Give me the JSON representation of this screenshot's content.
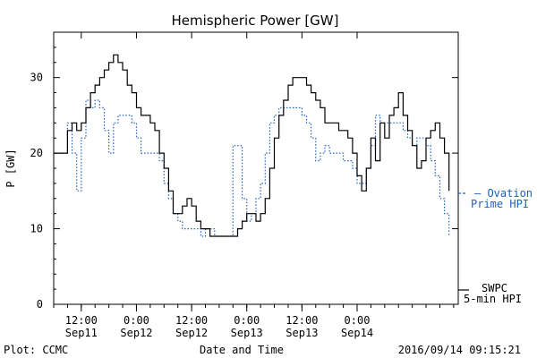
{
  "chart_data": {
    "type": "line",
    "title": "Hemispheric Power [GW]",
    "ylabel": "P [GW]",
    "xlabel": "Date and Time",
    "ylim": [
      0,
      36
    ],
    "xlim": [
      "2016-09-11T06:00",
      "2016-09-14T22:00"
    ],
    "grid": false,
    "y_ticks": [
      0,
      10,
      20,
      30
    ],
    "y_tick_labels": [
      "0",
      "10",
      "20",
      "30"
    ],
    "x_ticks": [
      {
        "t": "2016-09-11T12:00",
        "time": "12:00",
        "date": "Sep11"
      },
      {
        "t": "2016-09-12T00:00",
        "time": "0:00",
        "date": "Sep12"
      },
      {
        "t": "2016-09-12T12:00",
        "time": "12:00",
        "date": "Sep12"
      },
      {
        "t": "2016-09-13T00:00",
        "time": "0:00",
        "date": "Sep13"
      },
      {
        "t": "2016-09-13T12:00",
        "time": "12:00",
        "date": "Sep13"
      },
      {
        "t": "2016-09-14T00:00",
        "time": "0:00",
        "date": "Sep14"
      }
    ],
    "series": [
      {
        "name": "SWPC 5-min HPI",
        "style": "solid",
        "color": "#000000",
        "legend": [
          "SWPC",
          "5-min HPI"
        ],
        "points": [
          [
            "2016-09-11T06:00",
            20
          ],
          [
            "2016-09-11T08:00",
            20
          ],
          [
            "2016-09-11T09:00",
            23
          ],
          [
            "2016-09-11T10:00",
            24
          ],
          [
            "2016-09-11T11:00",
            23
          ],
          [
            "2016-09-11T12:00",
            24
          ],
          [
            "2016-09-11T13:00",
            26
          ],
          [
            "2016-09-11T14:00",
            28
          ],
          [
            "2016-09-11T15:00",
            29
          ],
          [
            "2016-09-11T16:00",
            30
          ],
          [
            "2016-09-11T17:00",
            31
          ],
          [
            "2016-09-11T18:00",
            32
          ],
          [
            "2016-09-11T19:00",
            33
          ],
          [
            "2016-09-11T20:00",
            32
          ],
          [
            "2016-09-11T21:00",
            31
          ],
          [
            "2016-09-11T22:00",
            29
          ],
          [
            "2016-09-11T23:00",
            28
          ],
          [
            "2016-09-12T00:00",
            26
          ],
          [
            "2016-09-12T01:00",
            25
          ],
          [
            "2016-09-12T02:00",
            25
          ],
          [
            "2016-09-12T03:00",
            24
          ],
          [
            "2016-09-12T04:00",
            23
          ],
          [
            "2016-09-12T05:00",
            20
          ],
          [
            "2016-09-12T06:00",
            18
          ],
          [
            "2016-09-12T07:00",
            15
          ],
          [
            "2016-09-12T08:00",
            12
          ],
          [
            "2016-09-12T09:00",
            12
          ],
          [
            "2016-09-12T10:00",
            13
          ],
          [
            "2016-09-12T11:00",
            14
          ],
          [
            "2016-09-12T12:00",
            13
          ],
          [
            "2016-09-12T13:00",
            11
          ],
          [
            "2016-09-12T14:00",
            10
          ],
          [
            "2016-09-12T15:00",
            10
          ],
          [
            "2016-09-12T16:00",
            9
          ],
          [
            "2016-09-12T17:00",
            9
          ],
          [
            "2016-09-12T18:00",
            9
          ],
          [
            "2016-09-12T19:00",
            9
          ],
          [
            "2016-09-12T20:00",
            9
          ],
          [
            "2016-09-12T21:00",
            9
          ],
          [
            "2016-09-12T22:00",
            10
          ],
          [
            "2016-09-12T23:00",
            11
          ],
          [
            "2016-09-13T00:00",
            12
          ],
          [
            "2016-09-13T01:00",
            12
          ],
          [
            "2016-09-13T02:00",
            11
          ],
          [
            "2016-09-13T03:00",
            12
          ],
          [
            "2016-09-13T04:00",
            14
          ],
          [
            "2016-09-13T05:00",
            18
          ],
          [
            "2016-09-13T06:00",
            22
          ],
          [
            "2016-09-13T07:00",
            25
          ],
          [
            "2016-09-13T08:00",
            27
          ],
          [
            "2016-09-13T09:00",
            29
          ],
          [
            "2016-09-13T10:00",
            30
          ],
          [
            "2016-09-13T11:00",
            30
          ],
          [
            "2016-09-13T12:00",
            30
          ],
          [
            "2016-09-13T13:00",
            29
          ],
          [
            "2016-09-13T14:00",
            28
          ],
          [
            "2016-09-13T15:00",
            27
          ],
          [
            "2016-09-13T16:00",
            26
          ],
          [
            "2016-09-13T17:00",
            24
          ],
          [
            "2016-09-13T18:00",
            24
          ],
          [
            "2016-09-13T19:00",
            24
          ],
          [
            "2016-09-13T20:00",
            23
          ],
          [
            "2016-09-13T21:00",
            23
          ],
          [
            "2016-09-13T22:00",
            22
          ],
          [
            "2016-09-13T23:00",
            20
          ],
          [
            "2016-09-14T00:00",
            17
          ],
          [
            "2016-09-14T01:00",
            15
          ],
          [
            "2016-09-14T02:00",
            18
          ],
          [
            "2016-09-14T03:00",
            22
          ],
          [
            "2016-09-14T04:00",
            19
          ],
          [
            "2016-09-14T05:00",
            24
          ],
          [
            "2016-09-14T06:00",
            22
          ],
          [
            "2016-09-14T07:00",
            25
          ],
          [
            "2016-09-14T08:00",
            26
          ],
          [
            "2016-09-14T09:00",
            28
          ],
          [
            "2016-09-14T10:00",
            25
          ],
          [
            "2016-09-14T11:00",
            23
          ],
          [
            "2016-09-14T12:00",
            21
          ],
          [
            "2016-09-14T13:00",
            18
          ],
          [
            "2016-09-14T14:00",
            19
          ],
          [
            "2016-09-14T15:00",
            22
          ],
          [
            "2016-09-14T16:00",
            23
          ],
          [
            "2016-09-14T17:00",
            24
          ],
          [
            "2016-09-14T18:00",
            22
          ],
          [
            "2016-09-14T19:00",
            20
          ],
          [
            "2016-09-14T20:00",
            15
          ]
        ]
      },
      {
        "name": "Ovation Prime HPI",
        "style": "dotted",
        "color": "#1f5fbf",
        "legend": [
          "— Ovation",
          "Prime HPI"
        ],
        "points": [
          [
            "2016-09-11T06:00",
            20
          ],
          [
            "2016-09-11T08:00",
            20
          ],
          [
            "2016-09-11T09:00",
            24
          ],
          [
            "2016-09-11T10:00",
            20
          ],
          [
            "2016-09-11T11:00",
            15
          ],
          [
            "2016-09-11T12:00",
            22
          ],
          [
            "2016-09-11T13:00",
            27
          ],
          [
            "2016-09-11T14:00",
            26
          ],
          [
            "2016-09-11T15:00",
            27
          ],
          [
            "2016-09-11T16:00",
            26
          ],
          [
            "2016-09-11T17:00",
            23
          ],
          [
            "2016-09-11T18:00",
            20
          ],
          [
            "2016-09-11T19:00",
            24
          ],
          [
            "2016-09-11T20:00",
            25
          ],
          [
            "2016-09-11T21:00",
            25
          ],
          [
            "2016-09-11T22:00",
            25
          ],
          [
            "2016-09-11T23:00",
            24
          ],
          [
            "2016-09-12T00:00",
            22
          ],
          [
            "2016-09-12T01:00",
            20
          ],
          [
            "2016-09-12T02:00",
            20
          ],
          [
            "2016-09-12T03:00",
            20
          ],
          [
            "2016-09-12T04:00",
            20
          ],
          [
            "2016-09-12T05:00",
            19
          ],
          [
            "2016-09-12T06:00",
            16
          ],
          [
            "2016-09-12T07:00",
            14
          ],
          [
            "2016-09-12T08:00",
            12
          ],
          [
            "2016-09-12T09:00",
            11
          ],
          [
            "2016-09-12T10:00",
            10
          ],
          [
            "2016-09-12T11:00",
            10
          ],
          [
            "2016-09-12T12:00",
            10
          ],
          [
            "2016-09-12T13:00",
            10
          ],
          [
            "2016-09-12T14:00",
            9
          ],
          [
            "2016-09-12T15:00",
            10
          ],
          [
            "2016-09-12T16:00",
            10
          ],
          [
            "2016-09-12T17:00",
            9
          ],
          [
            "2016-09-12T18:00",
            9
          ],
          [
            "2016-09-12T19:00",
            9
          ],
          [
            "2016-09-12T20:00",
            9
          ],
          [
            "2016-09-12T21:00",
            21
          ],
          [
            "2016-09-12T22:00",
            21
          ],
          [
            "2016-09-12T23:00",
            14
          ],
          [
            "2016-09-13T00:00",
            11
          ],
          [
            "2016-09-13T01:00",
            12
          ],
          [
            "2016-09-13T02:00",
            14
          ],
          [
            "2016-09-13T03:00",
            16
          ],
          [
            "2016-09-13T04:00",
            20
          ],
          [
            "2016-09-13T05:00",
            24
          ],
          [
            "2016-09-13T06:00",
            25
          ],
          [
            "2016-09-13T07:00",
            26
          ],
          [
            "2016-09-13T08:00",
            26
          ],
          [
            "2016-09-13T09:00",
            26
          ],
          [
            "2016-09-13T10:00",
            26
          ],
          [
            "2016-09-13T11:00",
            26
          ],
          [
            "2016-09-13T12:00",
            25
          ],
          [
            "2016-09-13T13:00",
            24
          ],
          [
            "2016-09-13T14:00",
            22
          ],
          [
            "2016-09-13T15:00",
            19
          ],
          [
            "2016-09-13T16:00",
            20
          ],
          [
            "2016-09-13T17:00",
            21
          ],
          [
            "2016-09-13T18:00",
            20
          ],
          [
            "2016-09-13T19:00",
            20
          ],
          [
            "2016-09-13T20:00",
            20
          ],
          [
            "2016-09-13T21:00",
            19
          ],
          [
            "2016-09-13T22:00",
            19
          ],
          [
            "2016-09-13T23:00",
            18
          ],
          [
            "2016-09-14T00:00",
            16
          ],
          [
            "2016-09-14T01:00",
            16
          ],
          [
            "2016-09-14T02:00",
            18
          ],
          [
            "2016-09-14T03:00",
            21
          ],
          [
            "2016-09-14T04:00",
            25
          ],
          [
            "2016-09-14T05:00",
            24
          ],
          [
            "2016-09-14T06:00",
            24
          ],
          [
            "2016-09-14T07:00",
            24
          ],
          [
            "2016-09-14T08:00",
            24
          ],
          [
            "2016-09-14T09:00",
            24
          ],
          [
            "2016-09-14T10:00",
            23
          ],
          [
            "2016-09-14T11:00",
            22
          ],
          [
            "2016-09-14T12:00",
            21
          ],
          [
            "2016-09-14T13:00",
            22
          ],
          [
            "2016-09-14T14:00",
            22
          ],
          [
            "2016-09-14T15:00",
            21
          ],
          [
            "2016-09-14T16:00",
            19
          ],
          [
            "2016-09-14T17:00",
            17
          ],
          [
            "2016-09-14T18:00",
            14
          ],
          [
            "2016-09-14T19:00",
            12
          ],
          [
            "2016-09-14T20:00",
            9
          ]
        ]
      }
    ]
  },
  "footer": {
    "plot_credit": "Plot: CCMC",
    "timestamp": "2016/09/14 09:15:21"
  }
}
